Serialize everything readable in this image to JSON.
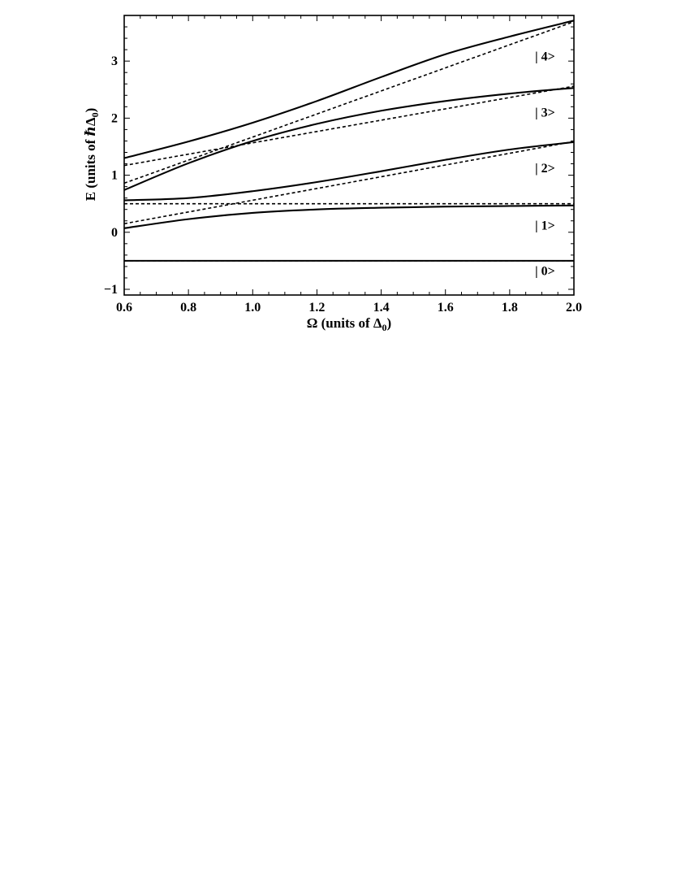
{
  "chart_data": {
    "type": "line",
    "xlabel": {
      "prefix": "Ω (units of Δ",
      "sub": "0",
      "suffix": ")"
    },
    "ylabel": {
      "prefix": "E (units of ℏΔ",
      "sub": "0",
      "suffix": ")"
    },
    "xlim": [
      0.6,
      2.0
    ],
    "ylim": [
      -1.1,
      3.8
    ],
    "xticks": [
      "0.6",
      "0.8",
      "1.0",
      "1.2",
      "1.4",
      "1.6",
      "1.8",
      "2.0"
    ],
    "yticks": [
      {
        "value": -1,
        "label": "−1"
      },
      {
        "value": 0,
        "label": "0"
      },
      {
        "value": 1,
        "label": "1"
      },
      {
        "value": 2,
        "label": "2"
      },
      {
        "value": 3,
        "label": "3"
      }
    ],
    "grid": false,
    "state_labels": [
      {
        "text": "| 0>",
        "x": 1.91,
        "y": -0.68
      },
      {
        "text": "| 1>",
        "x": 1.91,
        "y": 0.12
      },
      {
        "text": "| 2>",
        "x": 1.91,
        "y": 1.12
      },
      {
        "text": "| 3>",
        "x": 1.91,
        "y": 2.1
      },
      {
        "text": "| 4>",
        "x": 1.91,
        "y": 3.08
      }
    ],
    "series": [
      {
        "style": "solid",
        "x": [
          0.6,
          0.8,
          1.0,
          1.2,
          1.4,
          1.6,
          1.8,
          2.0
        ],
        "y": [
          -0.5,
          -0.5,
          -0.5,
          -0.5,
          -0.5,
          -0.5,
          -0.5,
          -0.5
        ]
      },
      {
        "style": "solid",
        "x": [
          0.6,
          0.8,
          1.0,
          1.2,
          1.4,
          1.6,
          1.8,
          2.0
        ],
        "y": [
          0.07,
          0.23,
          0.34,
          0.4,
          0.43,
          0.45,
          0.46,
          0.47
        ]
      },
      {
        "style": "solid",
        "x": [
          0.6,
          0.8,
          1.0,
          1.2,
          1.4,
          1.6,
          1.8,
          2.0
        ],
        "y": [
          0.56,
          0.6,
          0.72,
          0.88,
          1.07,
          1.27,
          1.45,
          1.58
        ]
      },
      {
        "style": "solid",
        "x": [
          0.6,
          0.8,
          1.0,
          1.2,
          1.4,
          1.6,
          1.8,
          2.0
        ],
        "y": [
          0.74,
          1.21,
          1.6,
          1.9,
          2.13,
          2.3,
          2.43,
          2.53
        ]
      },
      {
        "style": "solid",
        "x": [
          0.6,
          0.8,
          1.0,
          1.2,
          1.4,
          1.6,
          1.8,
          2.0
        ],
        "y": [
          1.3,
          1.59,
          1.92,
          2.3,
          2.72,
          3.12,
          3.43,
          3.71
        ]
      },
      {
        "style": "dashed",
        "x": [
          0.6,
          2.0
        ],
        "y": [
          -0.5,
          -0.5
        ]
      },
      {
        "style": "dashed",
        "x": [
          0.6,
          2.0
        ],
        "y": [
          0.5,
          0.5
        ]
      },
      {
        "style": "dashed",
        "x": [
          0.6,
          2.0
        ],
        "y": [
          0.15,
          1.59
        ]
      },
      {
        "style": "dashed",
        "x": [
          0.6,
          2.0
        ],
        "y": [
          1.17,
          2.56
        ]
      },
      {
        "style": "dashed",
        "x": [
          0.6,
          2.0
        ],
        "y": [
          0.86,
          3.69
        ]
      }
    ]
  }
}
